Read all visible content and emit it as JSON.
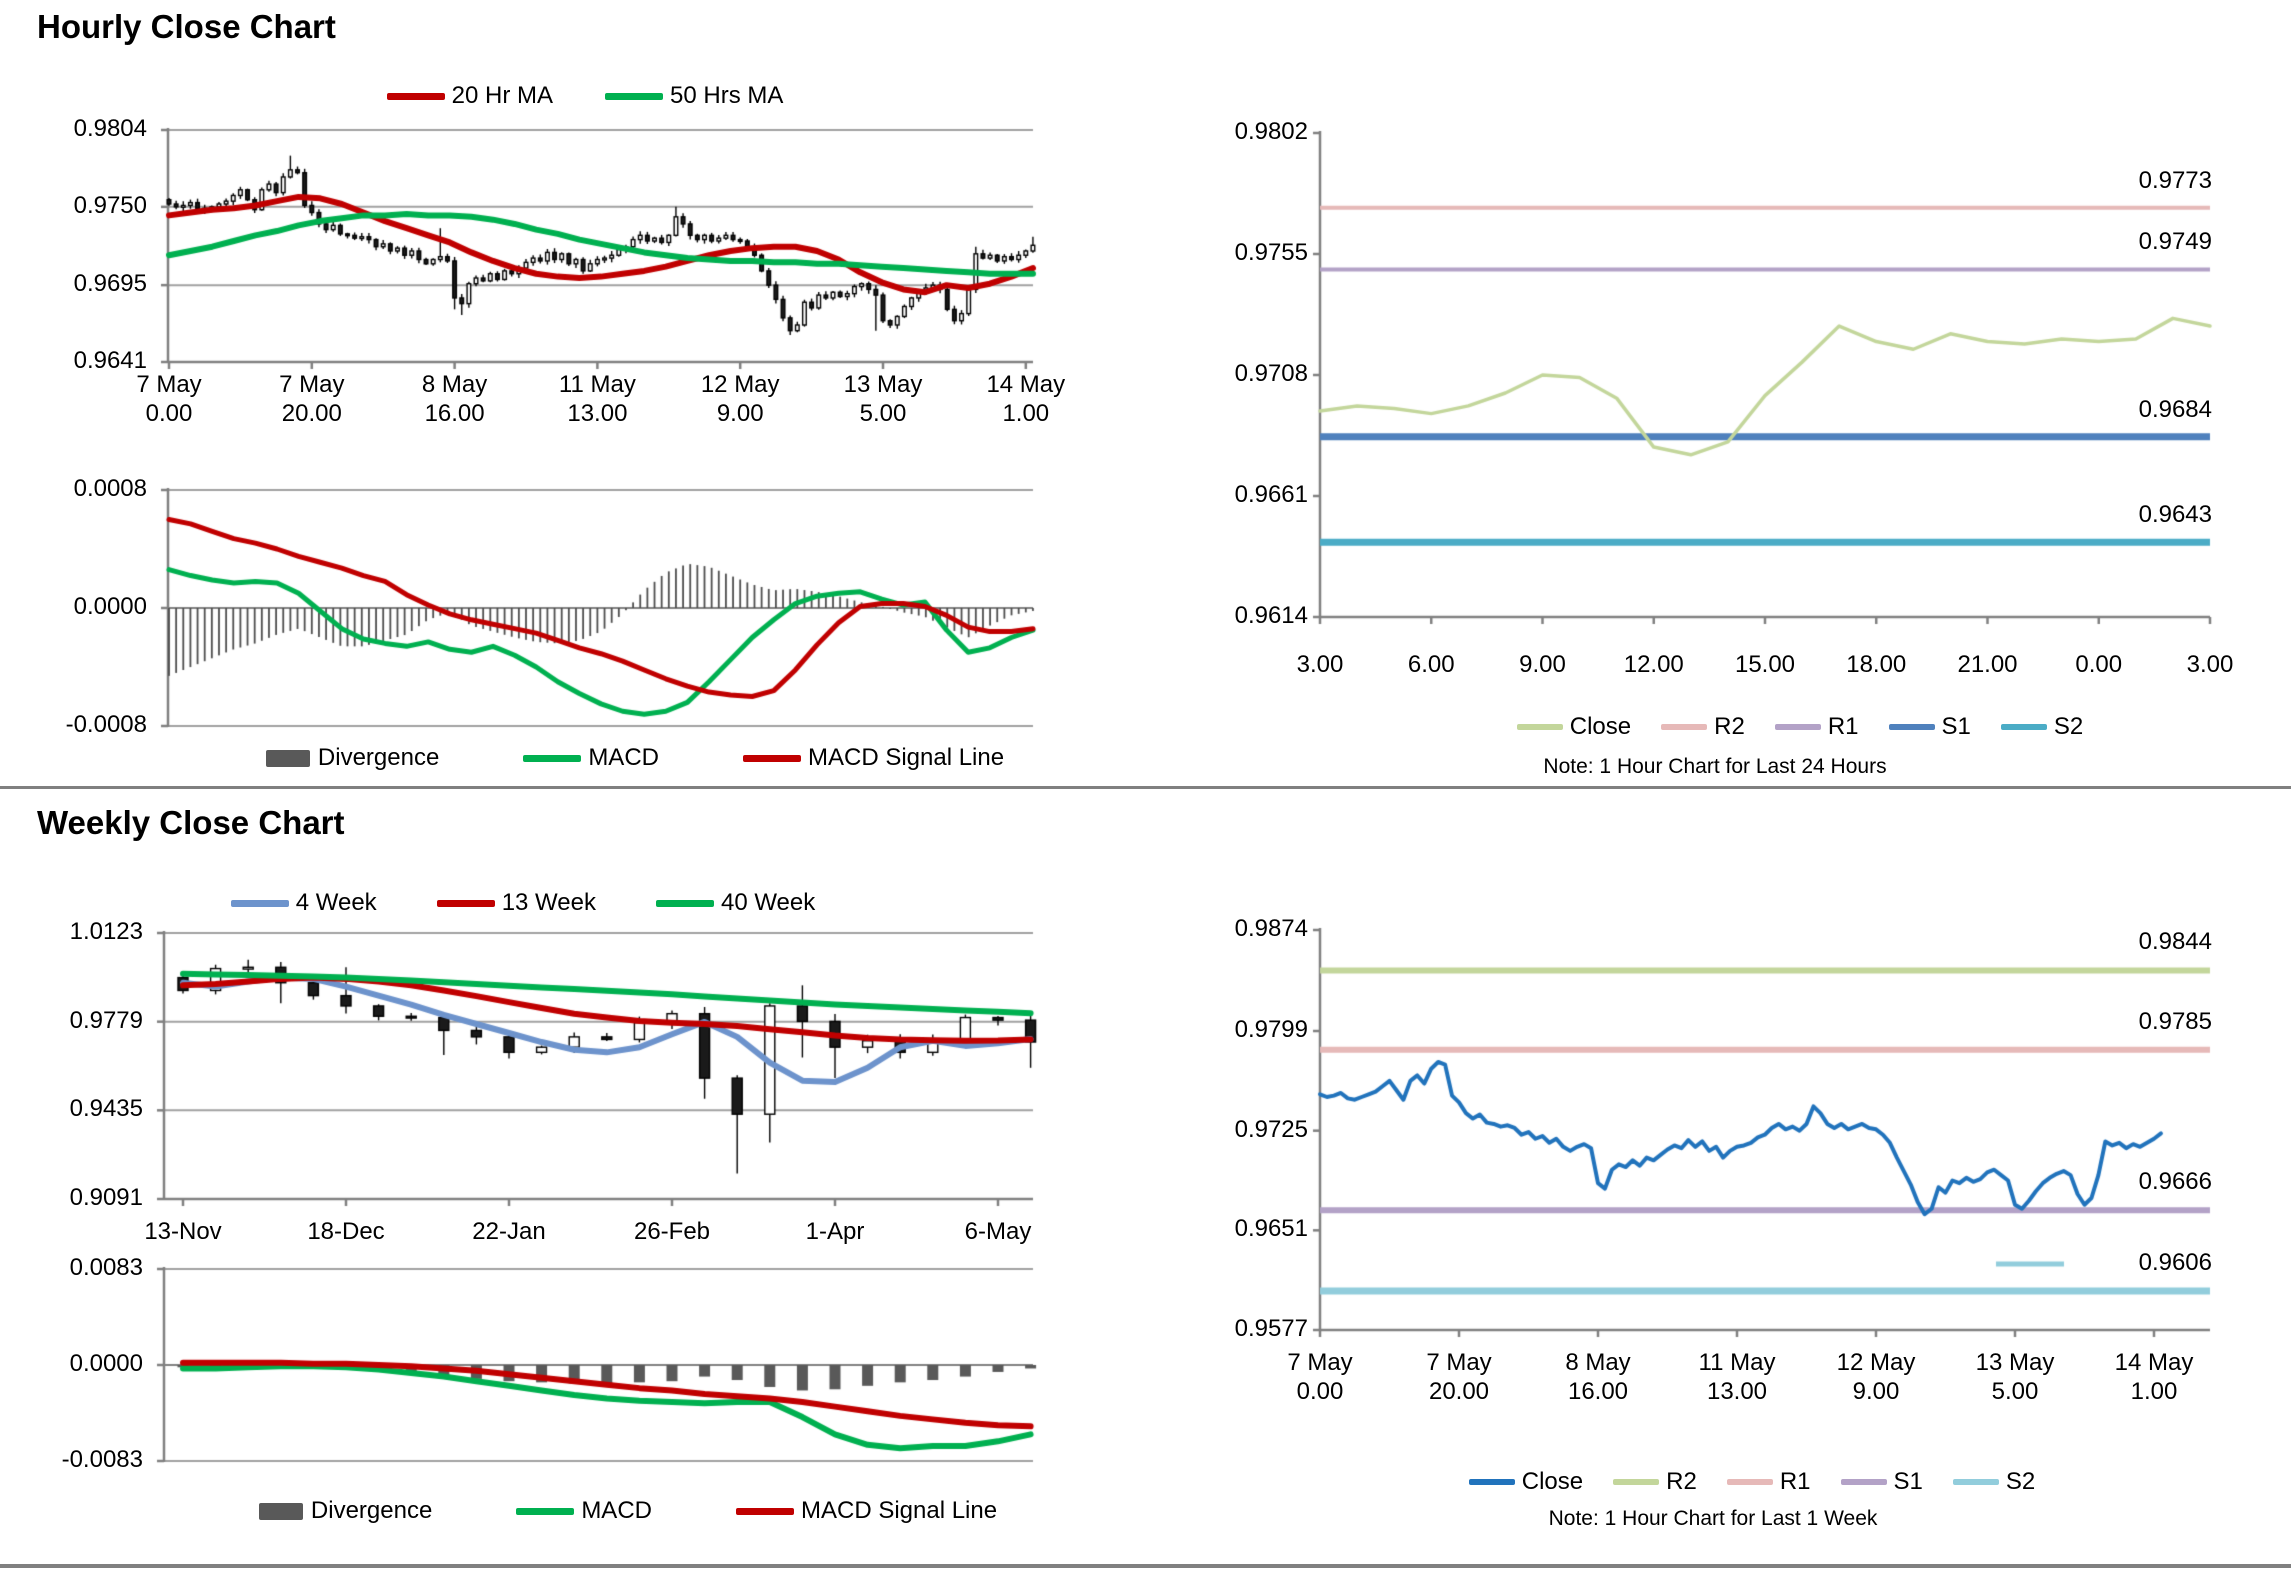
{
  "page": {
    "hourly_title": "Hourly Close Chart",
    "weekly_title": "Weekly Close Chart",
    "colors": {
      "red": "#C00000",
      "green": "#00B050",
      "gray_bar": "#595959",
      "blue_4wk": "#6D93CC",
      "close_blue": "#2173BC",
      "olive": "#C3D69B",
      "pink": "#E6B9B8",
      "purple": "#B3A2C7",
      "steel_blue": "#4F81BD",
      "teal": "#4BACC6",
      "light_blue": "#92CDDC",
      "grid": "#A0A0A0",
      "axis": "#808080",
      "divider": "#808080",
      "candle_up": "#FFFFFF",
      "candle_down": "#1A1A1A"
    }
  },
  "legends": {
    "hourly_price": [
      {
        "label": "20 Hr MA",
        "color": "#C00000"
      },
      {
        "label": "50 Hrs MA",
        "color": "#00B050"
      }
    ],
    "hourly_macd": [
      {
        "label": "Divergence",
        "color": "#595959"
      },
      {
        "label": "MACD",
        "color": "#00B050"
      },
      {
        "label": "MACD Signal Line",
        "color": "#C00000"
      }
    ],
    "weekly_price": [
      {
        "label": "4 Week",
        "color": "#6D93CC"
      },
      {
        "label": "13 Week",
        "color": "#C00000"
      },
      {
        "label": "40 Week",
        "color": "#00B050"
      }
    ],
    "weekly_macd": [
      {
        "label": "Divergence",
        "color": "#595959"
      },
      {
        "label": "MACD",
        "color": "#00B050"
      },
      {
        "label": "MACD Signal Line",
        "color": "#C00000"
      }
    ],
    "hourly_pivot": [
      {
        "label": "Close",
        "color": "#C3D69B"
      },
      {
        "label": "R2",
        "color": "#E6B9B8"
      },
      {
        "label": "R1",
        "color": "#B3A2C7"
      },
      {
        "label": "S1",
        "color": "#4F81BD"
      },
      {
        "label": "S2",
        "color": "#4BACC6"
      }
    ],
    "weekly_pivot": [
      {
        "label": "Close",
        "color": "#2173BC"
      },
      {
        "label": "R2",
        "color": "#C3D69B"
      },
      {
        "label": "R1",
        "color": "#E6B9B8"
      },
      {
        "label": "S1",
        "color": "#B3A2C7"
      },
      {
        "label": "S2",
        "color": "#92CDDC"
      }
    ]
  },
  "chart_data": [
    {
      "id": "hourly_price",
      "type": "candlestick",
      "title": "Hourly Close Chart",
      "ylim": [
        0.9641,
        0.9804
      ],
      "y_ticks": [
        "0.9804",
        "0.9750",
        "0.9695",
        "0.9641"
      ],
      "x_tick_labels": [
        "7 May\n0.00",
        "7 May\n20.00",
        "8 May\n16.00",
        "11 May\n13.00",
        "12 May\n9.00",
        "13 May\n5.00",
        "14 May\n1.00"
      ],
      "first_open": 0.9755,
      "closes": [
        0.9752,
        0.975,
        0.9751,
        0.9753,
        0.9749,
        0.9748,
        0.975,
        0.9752,
        0.9754,
        0.9758,
        0.9762,
        0.9755,
        0.9748,
        0.9762,
        0.9766,
        0.976,
        0.9771,
        0.9776,
        0.9774,
        0.9751,
        0.9746,
        0.9738,
        0.9734,
        0.9737,
        0.9731,
        0.973,
        0.9728,
        0.9729,
        0.9727,
        0.9722,
        0.9724,
        0.9719,
        0.9721,
        0.9716,
        0.9719,
        0.9713,
        0.971,
        0.9713,
        0.9715,
        0.9712,
        0.9686,
        0.9682,
        0.9696,
        0.97,
        0.9698,
        0.9703,
        0.9699,
        0.9705,
        0.9703,
        0.9707,
        0.9711,
        0.9714,
        0.9712,
        0.9718,
        0.9713,
        0.9717,
        0.971,
        0.9713,
        0.9705,
        0.971,
        0.9713,
        0.9714,
        0.9716,
        0.972,
        0.9722,
        0.9727,
        0.973,
        0.9726,
        0.9728,
        0.9725,
        0.973,
        0.9743,
        0.9738,
        0.973,
        0.9727,
        0.973,
        0.9726,
        0.9728,
        0.973,
        0.9727,
        0.9726,
        0.9722,
        0.9716,
        0.9705,
        0.9695,
        0.9685,
        0.9672,
        0.9663,
        0.9667,
        0.9683,
        0.9679,
        0.9688,
        0.9686,
        0.969,
        0.9687,
        0.9689,
        0.9694,
        0.9696,
        0.9692,
        0.9688,
        0.967,
        0.9667,
        0.9673,
        0.968,
        0.9686,
        0.969,
        0.9693,
        0.9695,
        0.9692,
        0.9678,
        0.967,
        0.9675,
        0.9692,
        0.9717,
        0.9714,
        0.9716,
        0.9712,
        0.9715,
        0.9713,
        0.9716,
        0.9719,
        0.9723
      ],
      "wick_overrides": {
        "17": [
          0.9786,
          null
        ],
        "38": [
          0.9735,
          null
        ],
        "40": [
          null,
          0.9678
        ],
        "41": [
          null,
          0.9674
        ],
        "71": [
          0.975,
          null
        ],
        "87": [
          null,
          0.966
        ],
        "99": [
          null,
          0.9663
        ],
        "113": [
          0.9722,
          null
        ],
        "121": [
          0.9729,
          null
        ]
      },
      "series": [
        {
          "name": "20 Hr MA",
          "color": "#C00000",
          "values": [
            0.9744,
            0.9746,
            0.9748,
            0.9749,
            0.9751,
            0.9754,
            0.9757,
            0.9756,
            0.9752,
            0.9746,
            0.974,
            0.9735,
            0.973,
            0.9725,
            0.9718,
            0.9712,
            0.9707,
            0.9703,
            0.9701,
            0.97,
            0.9701,
            0.9703,
            0.9705,
            0.9708,
            0.9712,
            0.9716,
            0.9719,
            0.9721,
            0.9722,
            0.9722,
            0.9719,
            0.9713,
            0.9704,
            0.9697,
            0.9692,
            0.969,
            0.9695,
            0.9693,
            0.9696,
            0.9701,
            0.9707
          ]
        },
        {
          "name": "50 Hrs MA",
          "color": "#00B050",
          "values": [
            0.9716,
            0.9719,
            0.9722,
            0.9726,
            0.973,
            0.9733,
            0.9737,
            0.974,
            0.9742,
            0.9744,
            0.9744,
            0.9745,
            0.9744,
            0.9744,
            0.9743,
            0.9741,
            0.9738,
            0.9734,
            0.9731,
            0.9727,
            0.9724,
            0.9721,
            0.9718,
            0.9716,
            0.9714,
            0.9713,
            0.9712,
            0.9712,
            0.9711,
            0.9711,
            0.971,
            0.971,
            0.9709,
            0.9708,
            0.9707,
            0.9706,
            0.9705,
            0.9704,
            0.9703,
            0.9703,
            0.9703
          ]
        }
      ]
    },
    {
      "id": "hourly_macd",
      "type": "bar+line",
      "ylim": [
        -0.0008,
        0.0008
      ],
      "y_ticks": [
        "0.0008",
        "0.0000",
        "-0.0008"
      ],
      "bar_count": 122,
      "divergence": [
        -0.00046,
        -0.0004,
        -0.00034,
        -0.00028,
        -0.00024,
        -0.00018,
        -0.00014,
        -0.0002,
        -0.00026,
        -0.00026,
        -0.00022,
        -0.00018,
        -8e-05,
        -3e-05,
        -0.00012,
        -0.00016,
        -0.0002,
        -0.00023,
        -0.00024,
        -0.00022,
        -0.00016,
        -4e-05,
        0.00012,
        0.00024,
        0.0003,
        0.00028,
        0.00022,
        0.00016,
        0.00012,
        0.00013,
        0.00011,
        8e-05,
        4e-05,
        1e-05,
        -3e-05,
        -6e-05,
        -0.00013,
        -0.0002,
        -0.00012,
        -5e-05,
        -2e-05
      ],
      "series": [
        {
          "name": "MACD",
          "color": "#00B050",
          "values": [
            0.00026,
            0.00022,
            0.00019,
            0.00017,
            0.00018,
            0.00017,
            0.0001,
            -2e-05,
            -0.00014,
            -0.00021,
            -0.00024,
            -0.00026,
            -0.00023,
            -0.00028,
            -0.0003,
            -0.00026,
            -0.00032,
            -0.0004,
            -0.0005,
            -0.00058,
            -0.00065,
            -0.0007,
            -0.00072,
            -0.0007,
            -0.00064,
            -0.0005,
            -0.00035,
            -0.0002,
            -8e-05,
            3e-05,
            8e-05,
            0.0001,
            0.00011,
            6e-05,
            2e-05,
            4e-05,
            -0.00015,
            -0.0003,
            -0.00027,
            -0.0002,
            -0.00015
          ]
        },
        {
          "name": "MACD Signal Line",
          "color": "#C00000",
          "values": [
            0.0006,
            0.00057,
            0.00052,
            0.00047,
            0.00044,
            0.0004,
            0.00035,
            0.00031,
            0.00027,
            0.00022,
            0.00018,
            9e-05,
            2e-05,
            -4e-05,
            -8e-05,
            -0.00011,
            -0.00014,
            -0.00017,
            -0.00022,
            -0.00027,
            -0.00031,
            -0.00036,
            -0.00042,
            -0.00048,
            -0.00053,
            -0.00057,
            -0.00059,
            -0.0006,
            -0.00056,
            -0.00042,
            -0.00025,
            -0.0001,
            1e-05,
            3e-05,
            3e-05,
            1e-05,
            -5e-05,
            -0.00013,
            -0.00016,
            -0.00016,
            -0.00014
          ]
        }
      ]
    },
    {
      "id": "hourly_pivot",
      "type": "line",
      "ylim": [
        0.9614,
        0.9802
      ],
      "y_ticks": [
        "0.9802",
        "0.9755",
        "0.9708",
        "0.9661",
        "0.9614"
      ],
      "x_tick_labels": [
        "3.00",
        "6.00",
        "9.00",
        "12.00",
        "15.00",
        "18.00",
        "21.00",
        "0.00",
        "3.00"
      ],
      "close": {
        "name": "Close",
        "color": "#C3D69B",
        "values": [
          0.9694,
          0.9696,
          0.9695,
          0.9693,
          0.9696,
          0.9701,
          0.9708,
          0.9707,
          0.9699,
          0.968,
          0.9677,
          0.9682,
          0.97,
          0.9713,
          0.9727,
          0.9721,
          0.9718,
          0.9724,
          0.9721,
          0.972,
          0.9722,
          0.9721,
          0.9722,
          0.973,
          0.9727
        ]
      },
      "levels": [
        {
          "name": "R2",
          "value": 0.9773,
          "label": "0.9773",
          "color": "#E6B9B8",
          "width": 4
        },
        {
          "name": "R1",
          "value": 0.9749,
          "label": "0.9749",
          "color": "#B3A2C7",
          "width": 4
        },
        {
          "name": "S1",
          "value": 0.9684,
          "label": "0.9684",
          "color": "#4F81BD",
          "width": 7
        },
        {
          "name": "S2",
          "value": 0.9643,
          "label": "0.9643",
          "color": "#4BACC6",
          "width": 7
        }
      ],
      "note": "Note: 1 Hour Chart for Last 24 Hours"
    },
    {
      "id": "weekly_price",
      "type": "candlestick",
      "title": "Weekly Close Chart",
      "ylim": [
        0.9091,
        1.0123
      ],
      "y_ticks": [
        "1.0123",
        "0.9779",
        "0.9435",
        "0.9091"
      ],
      "x_tick_labels": [
        "13-Nov",
        "18-Dec",
        "22-Jan",
        "26-Feb",
        "1-Apr",
        "6-May"
      ],
      "first_open": 0.995,
      "closes": [
        0.99,
        0.9985,
        0.999,
        0.993,
        0.988,
        0.984,
        0.98,
        0.9795,
        0.9745,
        0.972,
        0.966,
        0.968,
        0.972,
        0.971,
        0.9775,
        0.981,
        0.956,
        0.942,
        0.984,
        0.978,
        0.968,
        0.9705,
        0.966,
        0.97,
        0.9795,
        0.9785,
        0.97
      ],
      "wick_overrides": {
        "1": [
          1.0,
          null
        ],
        "3": [
          null,
          0.985
        ],
        "5": [
          0.999,
          null
        ],
        "8": [
          null,
          0.965
        ],
        "9": [
          0.978,
          null
        ],
        "16": [
          null,
          0.948
        ],
        "17": [
          null,
          0.919
        ],
        "18": [
          0.985,
          0.931
        ],
        "19": [
          0.992,
          0.964
        ],
        "20": [
          null,
          0.956
        ],
        "26": [
          null,
          0.96
        ]
      },
      "series": [
        {
          "name": "4 Week",
          "color": "#6D93CC",
          "values": [
            0.993,
            0.9915,
            0.9935,
            0.995,
            0.9945,
            0.9915,
            0.988,
            0.9845,
            0.9805,
            0.977,
            0.9735,
            0.97,
            0.967,
            0.966,
            0.968,
            0.973,
            0.9778,
            0.972,
            0.962,
            0.955,
            0.9545,
            0.96,
            0.968,
            0.9705,
            0.9685,
            0.9695,
            0.9712
          ]
        },
        {
          "name": "13 Week",
          "color": "#C00000",
          "values": [
            0.992,
            0.9925,
            0.9935,
            0.9945,
            0.995,
            0.9945,
            0.9935,
            0.992,
            0.99,
            0.9878,
            0.9855,
            0.9832,
            0.981,
            0.9795,
            0.9782,
            0.9775,
            0.977,
            0.9762,
            0.975,
            0.9738,
            0.9725,
            0.9716,
            0.971,
            0.9707,
            0.9705,
            0.9706,
            0.971
          ]
        },
        {
          "name": "40 Week",
          "color": "#00B050",
          "values": [
            0.9965,
            0.9962,
            0.996,
            0.9957,
            0.9954,
            0.995,
            0.9945,
            0.9939,
            0.9932,
            0.9925,
            0.9918,
            0.9912,
            0.9906,
            0.9899,
            0.9892,
            0.9885,
            0.9877,
            0.9869,
            0.9861,
            0.9853,
            0.9846,
            0.984,
            0.9834,
            0.9828,
            0.9822,
            0.9817,
            0.9812
          ]
        }
      ]
    },
    {
      "id": "weekly_macd",
      "type": "bar+line",
      "ylim": [
        -0.0083,
        0.0083
      ],
      "y_ticks": [
        "0.0083",
        "0.0000",
        "-0.0083"
      ],
      "divergence": [
        -0.0002,
        -0.0003,
        -0.0002,
        -0.0002,
        -0.0003,
        -0.0004,
        -0.0006,
        -0.0008,
        -0.001,
        -0.0012,
        -0.0014,
        -0.0015,
        -0.0016,
        -0.0016,
        -0.0015,
        -0.0014,
        -0.001,
        -0.0013,
        -0.0019,
        -0.0022,
        -0.0021,
        -0.0018,
        -0.0015,
        -0.0013,
        -0.001,
        -0.0006,
        -0.0003
      ],
      "series": [
        {
          "name": "MACD",
          "color": "#00B050",
          "values": [
            -0.0003,
            -0.0003,
            -0.0002,
            -0.0001,
            -0.0001,
            -0.0002,
            -0.0004,
            -0.0007,
            -0.001,
            -0.0014,
            -0.0018,
            -0.0022,
            -0.0026,
            -0.0029,
            -0.0031,
            -0.0032,
            -0.0033,
            -0.0032,
            -0.0032,
            -0.0045,
            -0.006,
            -0.0069,
            -0.0072,
            -0.007,
            -0.007,
            -0.0066,
            -0.006
          ]
        },
        {
          "name": "MACD Signal Line",
          "color": "#C00000",
          "values": [
            0.0002,
            0.0002,
            0.0002,
            0.0002,
            0.0001,
            0.0001,
            0.0,
            -0.0001,
            -0.0003,
            -0.0005,
            -0.0008,
            -0.0011,
            -0.0014,
            -0.0017,
            -0.002,
            -0.0022,
            -0.0025,
            -0.0027,
            -0.0029,
            -0.0032,
            -0.0036,
            -0.004,
            -0.0044,
            -0.0047,
            -0.005,
            -0.0052,
            -0.0053
          ]
        }
      ]
    },
    {
      "id": "weekly_pivot",
      "type": "line",
      "ylim": [
        0.9577,
        0.9874
      ],
      "y_ticks": [
        "0.9874",
        "0.9799",
        "0.9725",
        "0.9651",
        "0.9577"
      ],
      "x_tick_labels": [
        "7 May\n0.00",
        "7 May\n20.00",
        "8 May\n16.00",
        "11 May\n13.00",
        "12 May\n9.00",
        "13 May\n5.00",
        "14 May\n1.00"
      ],
      "close": {
        "name": "Close",
        "color": "#2173BC",
        "values_ref": "hourly_price"
      },
      "levels": [
        {
          "name": "R2",
          "value": 0.9844,
          "label": "0.9844",
          "color": "#C3D69B",
          "width": 6
        },
        {
          "name": "R1",
          "value": 0.9785,
          "label": "0.9785",
          "color": "#E6B9B8",
          "width": 6
        },
        {
          "name": "S1",
          "value": 0.9666,
          "label": "0.9666",
          "color": "#B3A2C7",
          "width": 6
        },
        {
          "name": "S2",
          "value": 0.9606,
          "label": "0.9606",
          "color": "#92CDDC",
          "width": 7,
          "label_dash": true
        }
      ],
      "note": "Note: 1 Hour Chart for Last 1 Week"
    }
  ]
}
